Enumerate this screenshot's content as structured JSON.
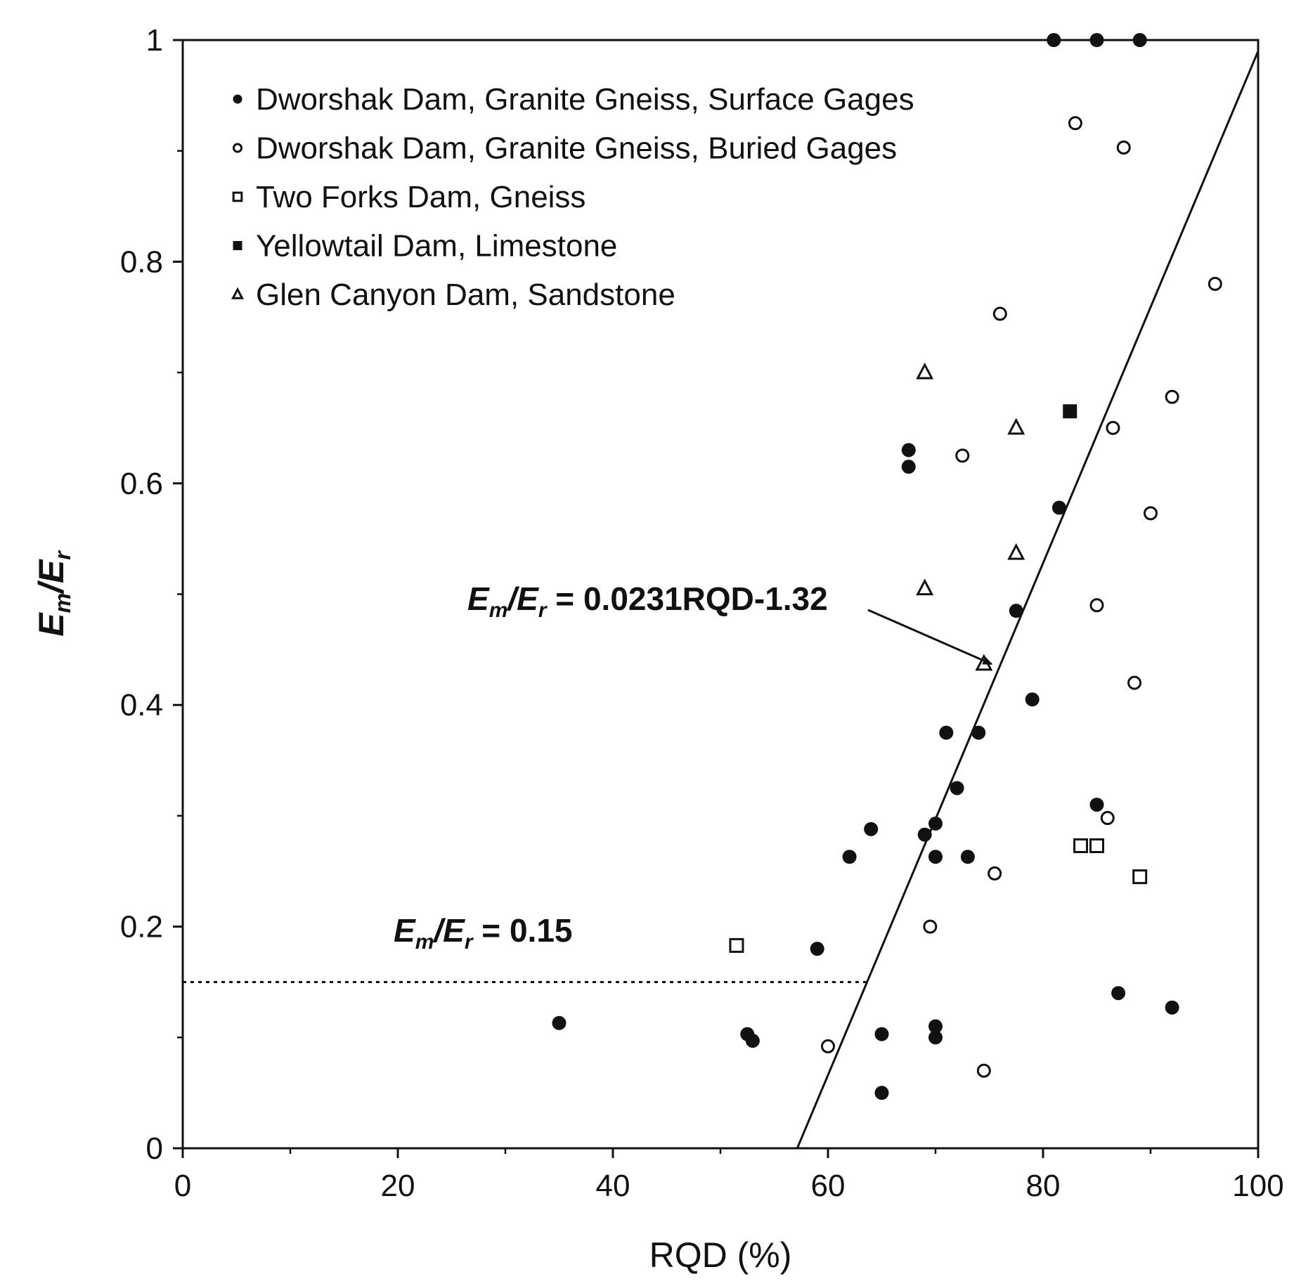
{
  "chart_data": {
    "type": "scatter",
    "xlabel": "RQD (%)",
    "ylabel": {
      "num": "E",
      "num_sub": "m",
      "sep": "/",
      "den": "E",
      "den_sub": "r"
    },
    "xlim": [
      0,
      100
    ],
    "ylim": [
      0,
      1
    ],
    "x_ticks": [
      "0",
      "20",
      "40",
      "60",
      "80",
      "100"
    ],
    "y_ticks": [
      "0",
      "0.2",
      "0.4",
      "0.6",
      "0.8",
      "1"
    ],
    "grid": false,
    "legend_position": "top-left",
    "series": [
      {
        "name": "Dworshak Dam, Granite Gneiss, Surface Gages",
        "marker": "filled-circle",
        "points": [
          [
            81,
            1.0
          ],
          [
            85,
            1.0
          ],
          [
            89,
            1.0
          ],
          [
            67.5,
            0.63
          ],
          [
            67.5,
            0.615
          ],
          [
            81.5,
            0.578
          ],
          [
            77.5,
            0.485
          ],
          [
            79,
            0.405
          ],
          [
            71,
            0.375
          ],
          [
            74,
            0.375
          ],
          [
            72,
            0.325
          ],
          [
            85,
            0.31
          ],
          [
            64,
            0.288
          ],
          [
            69,
            0.283
          ],
          [
            70,
            0.293
          ],
          [
            62,
            0.263
          ],
          [
            70,
            0.263
          ],
          [
            73,
            0.263
          ],
          [
            59,
            0.18
          ],
          [
            87,
            0.14
          ],
          [
            92,
            0.127
          ],
          [
            35,
            0.113
          ],
          [
            52.5,
            0.103
          ],
          [
            53,
            0.097
          ],
          [
            65,
            0.103
          ],
          [
            70,
            0.11
          ],
          [
            70,
            0.1
          ],
          [
            65,
            0.05
          ]
        ]
      },
      {
        "name": "Dworshak Dam, Granite Gneiss, Buried Gages",
        "marker": "open-circle",
        "points": [
          [
            83,
            0.925
          ],
          [
            87.5,
            0.903
          ],
          [
            96,
            0.78
          ],
          [
            76,
            0.753
          ],
          [
            92,
            0.678
          ],
          [
            86.5,
            0.65
          ],
          [
            72.5,
            0.625
          ],
          [
            90,
            0.573
          ],
          [
            85,
            0.49
          ],
          [
            88.5,
            0.42
          ],
          [
            86,
            0.298
          ],
          [
            75.5,
            0.248
          ],
          [
            69.5,
            0.2
          ],
          [
            60,
            0.092
          ],
          [
            74.5,
            0.07
          ]
        ]
      },
      {
        "name": "Two Forks Dam,  Gneiss",
        "marker": "open-square",
        "points": [
          [
            51.5,
            0.183
          ],
          [
            83.5,
            0.273
          ],
          [
            85,
            0.273
          ],
          [
            89,
            0.245
          ]
        ]
      },
      {
        "name": "Yellowtail Dam, Limestone",
        "marker": "filled-square",
        "points": [
          [
            82.5,
            0.665
          ]
        ]
      },
      {
        "name": "Glen Canyon Dam, Sandstone",
        "marker": "open-triangle",
        "points": [
          [
            69,
            0.7
          ],
          [
            77.5,
            0.65
          ],
          [
            77.5,
            0.537
          ],
          [
            69,
            0.505
          ],
          [
            74.5,
            0.437
          ]
        ]
      }
    ],
    "lines": [
      {
        "kind": "regression",
        "slope": 0.0231,
        "intercept": -1.32,
        "x_range": [
          57.14,
          100
        ]
      },
      {
        "kind": "threshold",
        "y": 0.15,
        "x_range": [
          0,
          63.6
        ]
      }
    ],
    "annotations": [
      {
        "prefix": "E",
        "prefix_sub": "m",
        "sep": "/",
        "suffix": "E",
        "suffix_sub": "r",
        "text": " = 0.0231RQD-1.32",
        "arrow_to": [
          75.2,
          0.437
        ]
      },
      {
        "prefix": "E",
        "prefix_sub": "m",
        "sep": "/",
        "suffix": "E",
        "suffix_sub": "r",
        "text": " = 0.15"
      }
    ]
  }
}
